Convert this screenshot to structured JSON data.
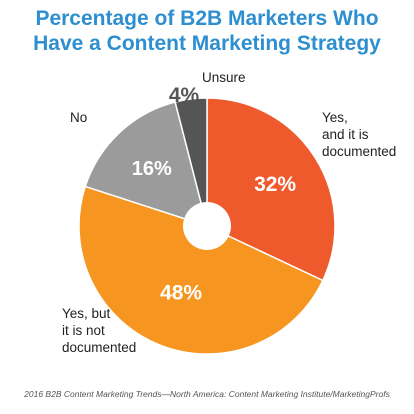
{
  "title_line1": "Percentage of B2B Marketers Who",
  "title_line2": "Have a Content Marketing Strategy",
  "source": "2016 B2B Content Marketing Trends—North America: Content Marketing Institute/MarketingProfs",
  "colors": {
    "title": "#2e8fd0",
    "yes_documented": "#ef5a2d",
    "yes_not_documented": "#f6951f",
    "no": "#9b9b9b",
    "unsure": "#555555"
  },
  "chart_data": {
    "type": "pie",
    "title": "Percentage of B2B Marketers Who Have a Content Marketing Strategy",
    "donut": true,
    "unit": "%",
    "slices": [
      {
        "label": "Yes, and it is documented",
        "label_lines": [
          "Yes,",
          "and it is",
          "documented"
        ],
        "value": 32,
        "value_label": "32%",
        "color": "#ef5a2d"
      },
      {
        "label": "Yes, but it is not documented",
        "label_lines": [
          "Yes, but",
          "it is not",
          "documented"
        ],
        "value": 48,
        "value_label": "48%",
        "color": "#f6951f"
      },
      {
        "label": "No",
        "label_lines": [
          "No"
        ],
        "value": 16,
        "value_label": "16%",
        "color": "#9b9b9b"
      },
      {
        "label": "Unsure",
        "label_lines": [
          "Unsure"
        ],
        "value": 4,
        "value_label": "4%",
        "color": "#555555"
      }
    ]
  }
}
